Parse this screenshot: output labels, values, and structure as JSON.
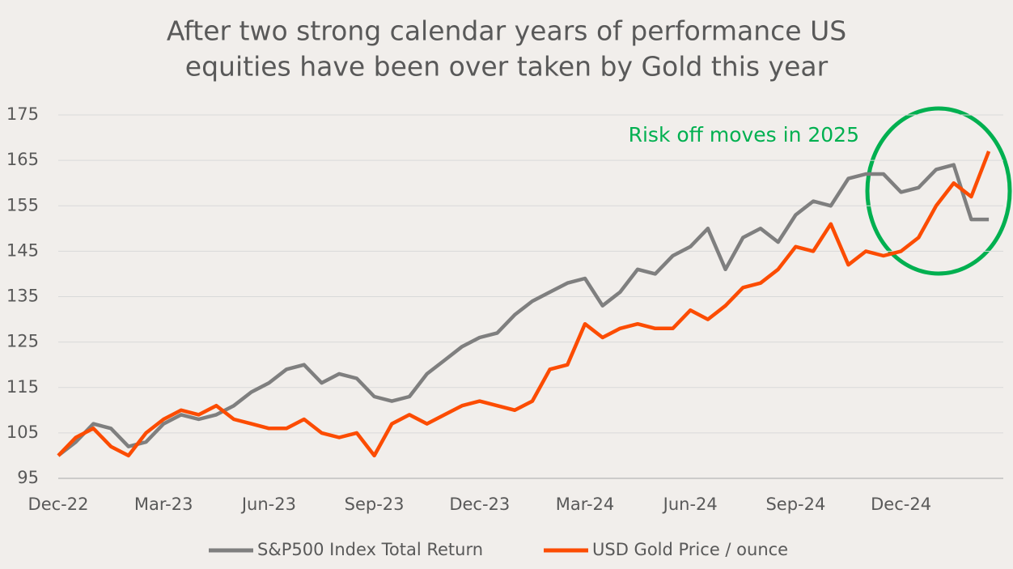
{
  "chart_data": {
    "type": "line",
    "title": [
      "After two strong calendar years of performance US",
      "equities have been over taken by Gold this year"
    ],
    "annotation": "Risk off moves in 2025",
    "categories": [
      "Dec-22",
      null,
      null,
      null,
      null,
      null,
      "Mar-23",
      null,
      null,
      null,
      null,
      null,
      "Jun-23",
      null,
      null,
      null,
      null,
      null,
      "Sep-23",
      null,
      null,
      null,
      null,
      null,
      "Dec-23",
      null,
      null,
      null,
      null,
      null,
      "Mar-24",
      null,
      null,
      null,
      null,
      null,
      "Jun-24",
      null,
      null,
      null,
      null,
      null,
      "Sep-24",
      null,
      null,
      null,
      null,
      null,
      "Dec-24",
      null,
      null,
      null,
      null,
      null
    ],
    "series": [
      {
        "name": "S&P500 Index Total Return",
        "color": "#7f7f7f",
        "values": [
          100,
          103,
          107,
          106,
          102,
          103,
          107,
          109,
          108,
          109,
          111,
          114,
          116,
          119,
          120,
          116,
          118,
          117,
          113,
          112,
          113,
          118,
          121,
          124,
          126,
          127,
          131,
          134,
          136,
          138,
          139,
          133,
          136,
          141,
          140,
          144,
          146,
          150,
          141,
          148,
          150,
          147,
          153,
          156,
          155,
          161,
          162,
          162,
          158,
          159,
          163,
          164,
          152,
          152
        ]
      },
      {
        "name": "USD Gold Price / ounce",
        "color": "#fc4c02",
        "values": [
          100,
          104,
          106,
          102,
          100,
          105,
          108,
          110,
          109,
          111,
          108,
          107,
          106,
          106,
          108,
          105,
          104,
          105,
          100,
          107,
          109,
          107,
          109,
          111,
          112,
          111,
          110,
          112,
          119,
          120,
          129,
          126,
          128,
          129,
          128,
          128,
          132,
          130,
          133,
          137,
          138,
          141,
          146,
          145,
          151,
          142,
          145,
          144,
          145,
          148,
          155,
          160,
          157,
          167
        ]
      }
    ],
    "ylim": [
      95,
      175
    ],
    "yticks": [
      95,
      105,
      115,
      125,
      135,
      145,
      155,
      165,
      175
    ],
    "grid": true,
    "legend": "bottom"
  }
}
